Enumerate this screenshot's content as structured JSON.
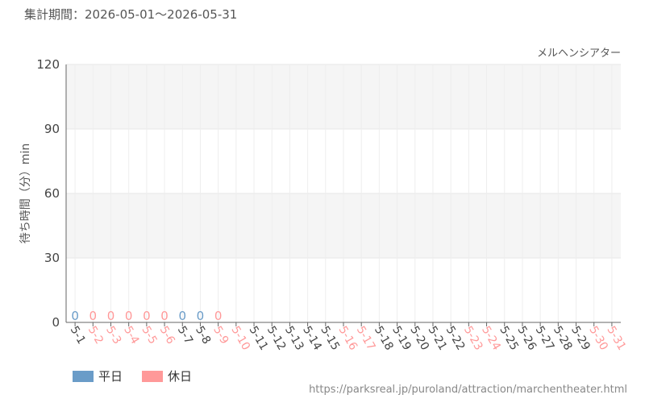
{
  "chart_data": {
    "type": "bar",
    "title": "集計期間：2026-05-01～2026-05-31",
    "subtitle": "メルヘンシアター",
    "y_label": "待ち時間（分）min",
    "source": "https://parksreal.jp/puroland/attraction/marchentheater.html",
    "categories": [
      "5-1",
      "5-2",
      "5-3",
      "5-4",
      "5-5",
      "5-6",
      "5-7",
      "5-8",
      "5-9",
      "5-10",
      "5-11",
      "5-12",
      "5-13",
      "5-14",
      "5-15",
      "5-16",
      "5-17",
      "5-18",
      "5-19",
      "5-20",
      "5-21",
      "5-22",
      "5-23",
      "5-24",
      "5-25",
      "5-26",
      "5-27",
      "5-28",
      "5-29",
      "5-30",
      "5-31"
    ],
    "category_colors": [
      "#444",
      "#f99",
      "#f99",
      "#f99",
      "#f99",
      "#f99",
      "#444",
      "#444",
      "#f99",
      "#f99",
      "#444",
      "#444",
      "#444",
      "#444",
      "#444",
      "#f99",
      "#f99",
      "#444",
      "#444",
      "#444",
      "#444",
      "#444",
      "#f99",
      "#f99",
      "#444",
      "#444",
      "#444",
      "#444",
      "#444",
      "#f99",
      "#f99"
    ],
    "series": [
      {
        "name": "平日",
        "color": "#6a9cc8",
        "values": [
          0,
          null,
          null,
          null,
          null,
          null,
          0,
          0,
          null,
          null,
          null,
          null,
          null,
          null,
          null,
          null,
          null,
          null,
          null,
          null,
          null,
          null,
          null,
          null,
          null,
          null,
          null,
          null,
          null,
          null,
          null
        ]
      },
      {
        "name": "休日",
        "color": "#ff9999",
        "values": [
          null,
          0,
          0,
          0,
          0,
          0,
          null,
          null,
          0,
          null,
          null,
          null,
          null,
          null,
          null,
          null,
          null,
          null,
          null,
          null,
          null,
          null,
          null,
          null,
          null,
          null,
          null,
          null,
          null,
          null,
          null
        ]
      }
    ],
    "ylim": [
      0,
      120
    ],
    "yticks": [
      0,
      30,
      60,
      90,
      120
    ],
    "grid": true
  }
}
